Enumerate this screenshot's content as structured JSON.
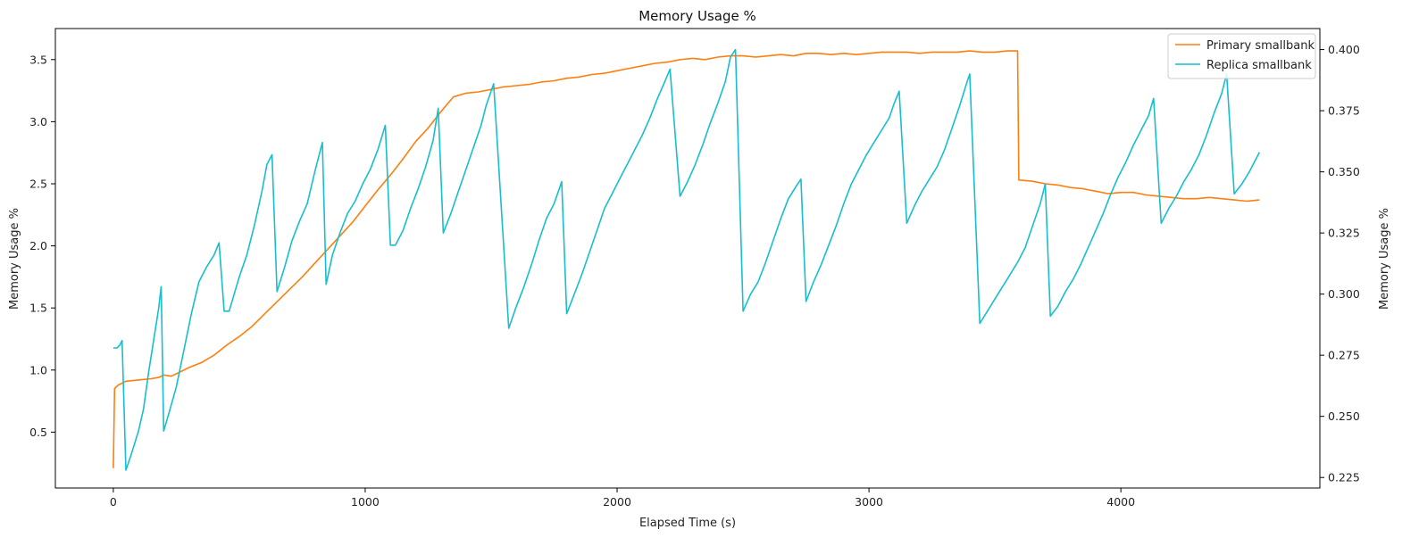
{
  "chart_data": {
    "type": "line",
    "title": "Memory Usage %",
    "xlabel": "Elapsed Time (s)",
    "ylabel_left": "Memory Usage %",
    "ylabel_right": "Memory Usage %",
    "xlim": [
      -230,
      4790
    ],
    "ylim_left": [
      0.05,
      3.75
    ],
    "ylim_right": [
      0.2207,
      0.4086
    ],
    "x_ticks": [
      0,
      1000,
      2000,
      3000,
      4000
    ],
    "x_tick_labels": [
      "0",
      "1000",
      "2000",
      "3000",
      "4000"
    ],
    "y_left_ticks": [
      0.5,
      1.0,
      1.5,
      2.0,
      2.5,
      3.0,
      3.5
    ],
    "y_left_tick_labels": [
      "0.5",
      "1.0",
      "1.5",
      "2.0",
      "2.5",
      "3.0",
      "3.5"
    ],
    "y_right_ticks": [
      0.225,
      0.25,
      0.275,
      0.3,
      0.325,
      0.35,
      0.375,
      0.4
    ],
    "y_right_tick_labels": [
      "0.225",
      "0.250",
      "0.275",
      "0.300",
      "0.325",
      "0.350",
      "0.375",
      "0.400"
    ],
    "grid": false,
    "legend_position": "top-right",
    "series": [
      {
        "name": "Primary smallbank",
        "axis": "left",
        "color": "#ff7f0e",
        "points": [
          [
            0,
            0.21
          ],
          [
            5,
            0.85
          ],
          [
            20,
            0.88
          ],
          [
            50,
            0.91
          ],
          [
            100,
            0.92
          ],
          [
            150,
            0.93
          ],
          [
            180,
            0.94
          ],
          [
            200,
            0.96
          ],
          [
            230,
            0.95
          ],
          [
            260,
            0.98
          ],
          [
            300,
            1.02
          ],
          [
            350,
            1.06
          ],
          [
            400,
            1.12
          ],
          [
            450,
            1.2
          ],
          [
            500,
            1.27
          ],
          [
            550,
            1.35
          ],
          [
            600,
            1.45
          ],
          [
            650,
            1.55
          ],
          [
            700,
            1.65
          ],
          [
            750,
            1.75
          ],
          [
            800,
            1.86
          ],
          [
            850,
            1.97
          ],
          [
            900,
            2.08
          ],
          [
            950,
            2.19
          ],
          [
            1000,
            2.32
          ],
          [
            1050,
            2.45
          ],
          [
            1100,
            2.57
          ],
          [
            1150,
            2.7
          ],
          [
            1200,
            2.84
          ],
          [
            1250,
            2.95
          ],
          [
            1300,
            3.08
          ],
          [
            1350,
            3.2
          ],
          [
            1400,
            3.23
          ],
          [
            1450,
            3.24
          ],
          [
            1500,
            3.26
          ],
          [
            1550,
            3.28
          ],
          [
            1600,
            3.29
          ],
          [
            1650,
            3.3
          ],
          [
            1700,
            3.32
          ],
          [
            1750,
            3.33
          ],
          [
            1800,
            3.35
          ],
          [
            1850,
            3.36
          ],
          [
            1900,
            3.38
          ],
          [
            1950,
            3.39
          ],
          [
            2000,
            3.41
          ],
          [
            2050,
            3.43
          ],
          [
            2100,
            3.45
          ],
          [
            2150,
            3.47
          ],
          [
            2200,
            3.48
          ],
          [
            2250,
            3.5
          ],
          [
            2300,
            3.51
          ],
          [
            2350,
            3.5
          ],
          [
            2400,
            3.52
          ],
          [
            2450,
            3.53
          ],
          [
            2500,
            3.53
          ],
          [
            2550,
            3.52
          ],
          [
            2600,
            3.53
          ],
          [
            2650,
            3.54
          ],
          [
            2700,
            3.53
          ],
          [
            2750,
            3.55
          ],
          [
            2800,
            3.55
          ],
          [
            2850,
            3.54
          ],
          [
            2900,
            3.55
          ],
          [
            2950,
            3.54
          ],
          [
            3000,
            3.55
          ],
          [
            3050,
            3.56
          ],
          [
            3100,
            3.56
          ],
          [
            3150,
            3.56
          ],
          [
            3200,
            3.55
          ],
          [
            3250,
            3.56
          ],
          [
            3300,
            3.56
          ],
          [
            3350,
            3.56
          ],
          [
            3400,
            3.57
          ],
          [
            3450,
            3.56
          ],
          [
            3500,
            3.56
          ],
          [
            3550,
            3.57
          ],
          [
            3590,
            3.57
          ],
          [
            3595,
            2.53
          ],
          [
            3650,
            2.52
          ],
          [
            3700,
            2.5
          ],
          [
            3750,
            2.49
          ],
          [
            3800,
            2.47
          ],
          [
            3850,
            2.46
          ],
          [
            3900,
            2.44
          ],
          [
            3950,
            2.42
          ],
          [
            4000,
            2.43
          ],
          [
            4050,
            2.43
          ],
          [
            4100,
            2.41
          ],
          [
            4150,
            2.4
          ],
          [
            4200,
            2.39
          ],
          [
            4250,
            2.38
          ],
          [
            4300,
            2.38
          ],
          [
            4350,
            2.39
          ],
          [
            4400,
            2.38
          ],
          [
            4450,
            2.37
          ],
          [
            4500,
            2.36
          ],
          [
            4550,
            2.37
          ]
        ]
      },
      {
        "name": "Replica smallbank",
        "axis": "right",
        "color": "#17becf",
        "points": [
          [
            0,
            0.278
          ],
          [
            15,
            0.278
          ],
          [
            25,
            0.279
          ],
          [
            35,
            0.281
          ],
          [
            50,
            0.228
          ],
          [
            70,
            0.234
          ],
          [
            100,
            0.244
          ],
          [
            120,
            0.253
          ],
          [
            140,
            0.268
          ],
          [
            160,
            0.281
          ],
          [
            180,
            0.294
          ],
          [
            190,
            0.303
          ],
          [
            200,
            0.244
          ],
          [
            220,
            0.251
          ],
          [
            250,
            0.262
          ],
          [
            280,
            0.277
          ],
          [
            310,
            0.292
          ],
          [
            340,
            0.305
          ],
          [
            370,
            0.311
          ],
          [
            400,
            0.316
          ],
          [
            420,
            0.321
          ],
          [
            440,
            0.293
          ],
          [
            460,
            0.293
          ],
          [
            500,
            0.307
          ],
          [
            530,
            0.316
          ],
          [
            560,
            0.328
          ],
          [
            590,
            0.342
          ],
          [
            610,
            0.353
          ],
          [
            630,
            0.357
          ],
          [
            650,
            0.301
          ],
          [
            680,
            0.311
          ],
          [
            710,
            0.322
          ],
          [
            740,
            0.33
          ],
          [
            770,
            0.337
          ],
          [
            800,
            0.35
          ],
          [
            830,
            0.362
          ],
          [
            845,
            0.304
          ],
          [
            870,
            0.316
          ],
          [
            900,
            0.325
          ],
          [
            930,
            0.333
          ],
          [
            960,
            0.338
          ],
          [
            990,
            0.345
          ],
          [
            1020,
            0.351
          ],
          [
            1050,
            0.359
          ],
          [
            1080,
            0.369
          ],
          [
            1100,
            0.32
          ],
          [
            1120,
            0.32
          ],
          [
            1150,
            0.326
          ],
          [
            1180,
            0.335
          ],
          [
            1210,
            0.343
          ],
          [
            1240,
            0.352
          ],
          [
            1270,
            0.363
          ],
          [
            1290,
            0.376
          ],
          [
            1310,
            0.325
          ],
          [
            1340,
            0.333
          ],
          [
            1370,
            0.342
          ],
          [
            1400,
            0.351
          ],
          [
            1430,
            0.36
          ],
          [
            1460,
            0.369
          ],
          [
            1480,
            0.377
          ],
          [
            1510,
            0.386
          ],
          [
            1570,
            0.286
          ],
          [
            1600,
            0.295
          ],
          [
            1630,
            0.303
          ],
          [
            1660,
            0.312
          ],
          [
            1690,
            0.322
          ],
          [
            1720,
            0.331
          ],
          [
            1750,
            0.337
          ],
          [
            1780,
            0.346
          ],
          [
            1800,
            0.292
          ],
          [
            1830,
            0.3
          ],
          [
            1860,
            0.308
          ],
          [
            1890,
            0.317
          ],
          [
            1920,
            0.326
          ],
          [
            1950,
            0.335
          ],
          [
            1980,
            0.341
          ],
          [
            2010,
            0.347
          ],
          [
            2040,
            0.353
          ],
          [
            2070,
            0.359
          ],
          [
            2100,
            0.365
          ],
          [
            2130,
            0.372
          ],
          [
            2160,
            0.38
          ],
          [
            2190,
            0.387
          ],
          [
            2210,
            0.392
          ],
          [
            2250,
            0.34
          ],
          [
            2280,
            0.346
          ],
          [
            2310,
            0.353
          ],
          [
            2340,
            0.361
          ],
          [
            2370,
            0.37
          ],
          [
            2400,
            0.378
          ],
          [
            2430,
            0.387
          ],
          [
            2450,
            0.397
          ],
          [
            2470,
            0.4
          ],
          [
            2500,
            0.293
          ],
          [
            2530,
            0.3
          ],
          [
            2560,
            0.305
          ],
          [
            2590,
            0.313
          ],
          [
            2620,
            0.322
          ],
          [
            2650,
            0.331
          ],
          [
            2680,
            0.339
          ],
          [
            2710,
            0.344
          ],
          [
            2730,
            0.347
          ],
          [
            2750,
            0.297
          ],
          [
            2780,
            0.305
          ],
          [
            2810,
            0.312
          ],
          [
            2840,
            0.32
          ],
          [
            2870,
            0.328
          ],
          [
            2900,
            0.337
          ],
          [
            2930,
            0.345
          ],
          [
            2960,
            0.351
          ],
          [
            2990,
            0.357
          ],
          [
            3020,
            0.362
          ],
          [
            3050,
            0.367
          ],
          [
            3080,
            0.372
          ],
          [
            3100,
            0.378
          ],
          [
            3120,
            0.383
          ],
          [
            3150,
            0.329
          ],
          [
            3180,
            0.336
          ],
          [
            3210,
            0.342
          ],
          [
            3240,
            0.347
          ],
          [
            3270,
            0.352
          ],
          [
            3300,
            0.359
          ],
          [
            3330,
            0.368
          ],
          [
            3360,
            0.377
          ],
          [
            3390,
            0.387
          ],
          [
            3400,
            0.39
          ],
          [
            3440,
            0.288
          ],
          [
            3470,
            0.293
          ],
          [
            3500,
            0.298
          ],
          [
            3530,
            0.303
          ],
          [
            3560,
            0.308
          ],
          [
            3590,
            0.313
          ],
          [
            3620,
            0.319
          ],
          [
            3650,
            0.328
          ],
          [
            3680,
            0.337
          ],
          [
            3700,
            0.345
          ],
          [
            3720,
            0.291
          ],
          [
            3750,
            0.295
          ],
          [
            3780,
            0.301
          ],
          [
            3810,
            0.306
          ],
          [
            3840,
            0.312
          ],
          [
            3870,
            0.319
          ],
          [
            3900,
            0.326
          ],
          [
            3930,
            0.333
          ],
          [
            3960,
            0.341
          ],
          [
            3990,
            0.348
          ],
          [
            4020,
            0.354
          ],
          [
            4050,
            0.361
          ],
          [
            4080,
            0.367
          ],
          [
            4110,
            0.373
          ],
          [
            4130,
            0.38
          ],
          [
            4160,
            0.329
          ],
          [
            4190,
            0.335
          ],
          [
            4220,
            0.34
          ],
          [
            4250,
            0.346
          ],
          [
            4280,
            0.351
          ],
          [
            4310,
            0.357
          ],
          [
            4340,
            0.365
          ],
          [
            4370,
            0.374
          ],
          [
            4400,
            0.382
          ],
          [
            4420,
            0.39
          ],
          [
            4450,
            0.341
          ],
          [
            4480,
            0.345
          ],
          [
            4510,
            0.35
          ],
          [
            4550,
            0.358
          ]
        ]
      }
    ]
  }
}
